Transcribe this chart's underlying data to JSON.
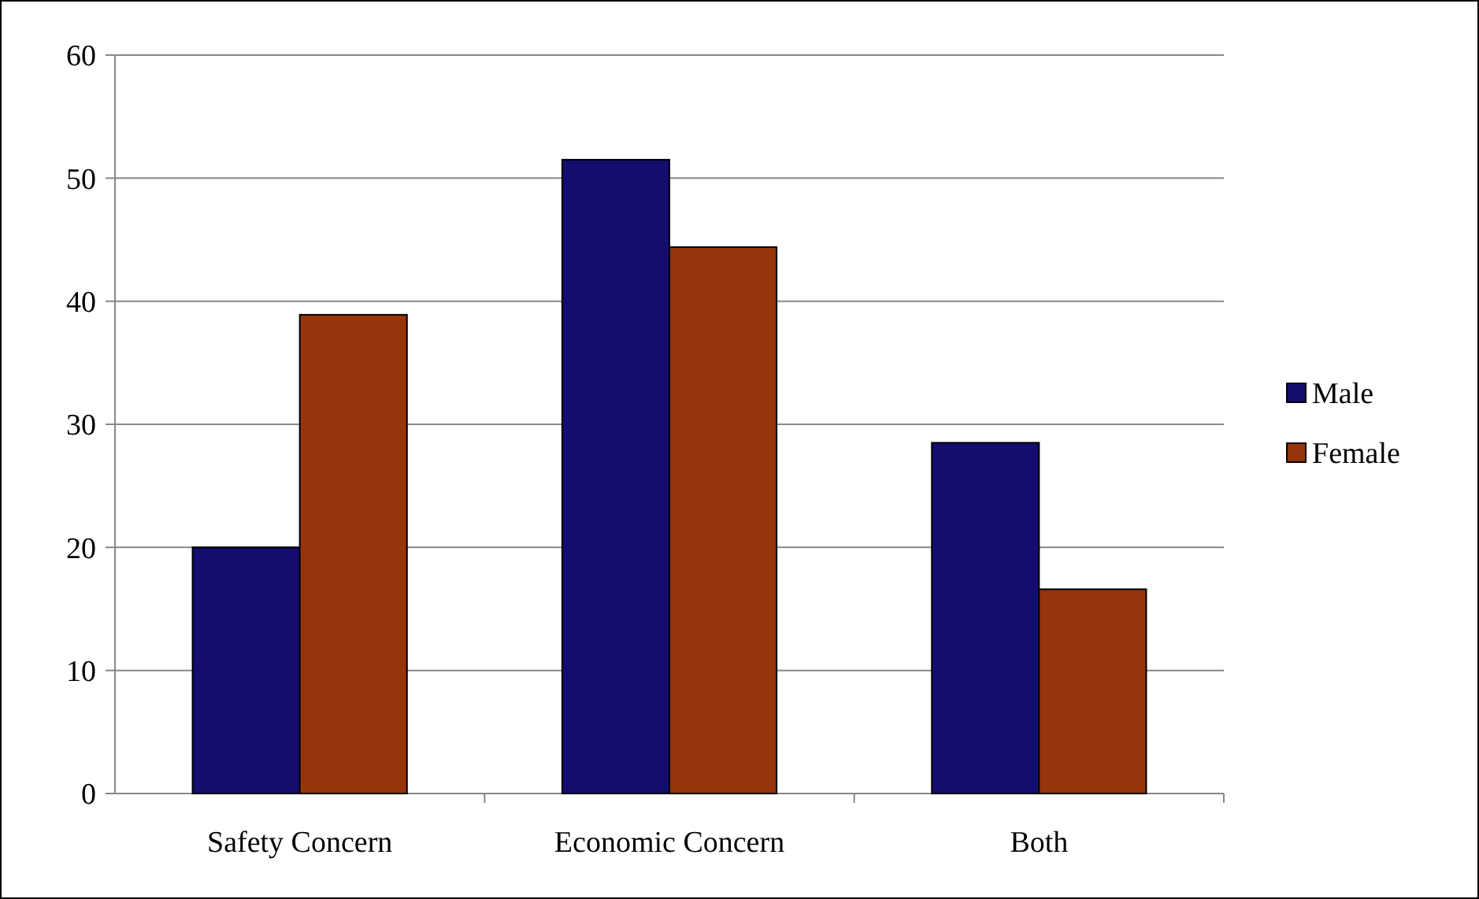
{
  "chart_data": {
    "type": "bar",
    "categories": [
      "Safety Concern",
      "Economic Concern",
      "Both"
    ],
    "series": [
      {
        "name": "Male",
        "color": "#140c6e",
        "values": [
          20,
          51.5,
          28.5
        ]
      },
      {
        "name": "Female",
        "color": "#96340c",
        "values": [
          38.9,
          44.4,
          16.6
        ]
      }
    ],
    "ylim": [
      0,
      60
    ],
    "yticks": [
      0,
      10,
      20,
      30,
      40,
      50,
      60
    ],
    "grid": "y",
    "legend": "right"
  }
}
